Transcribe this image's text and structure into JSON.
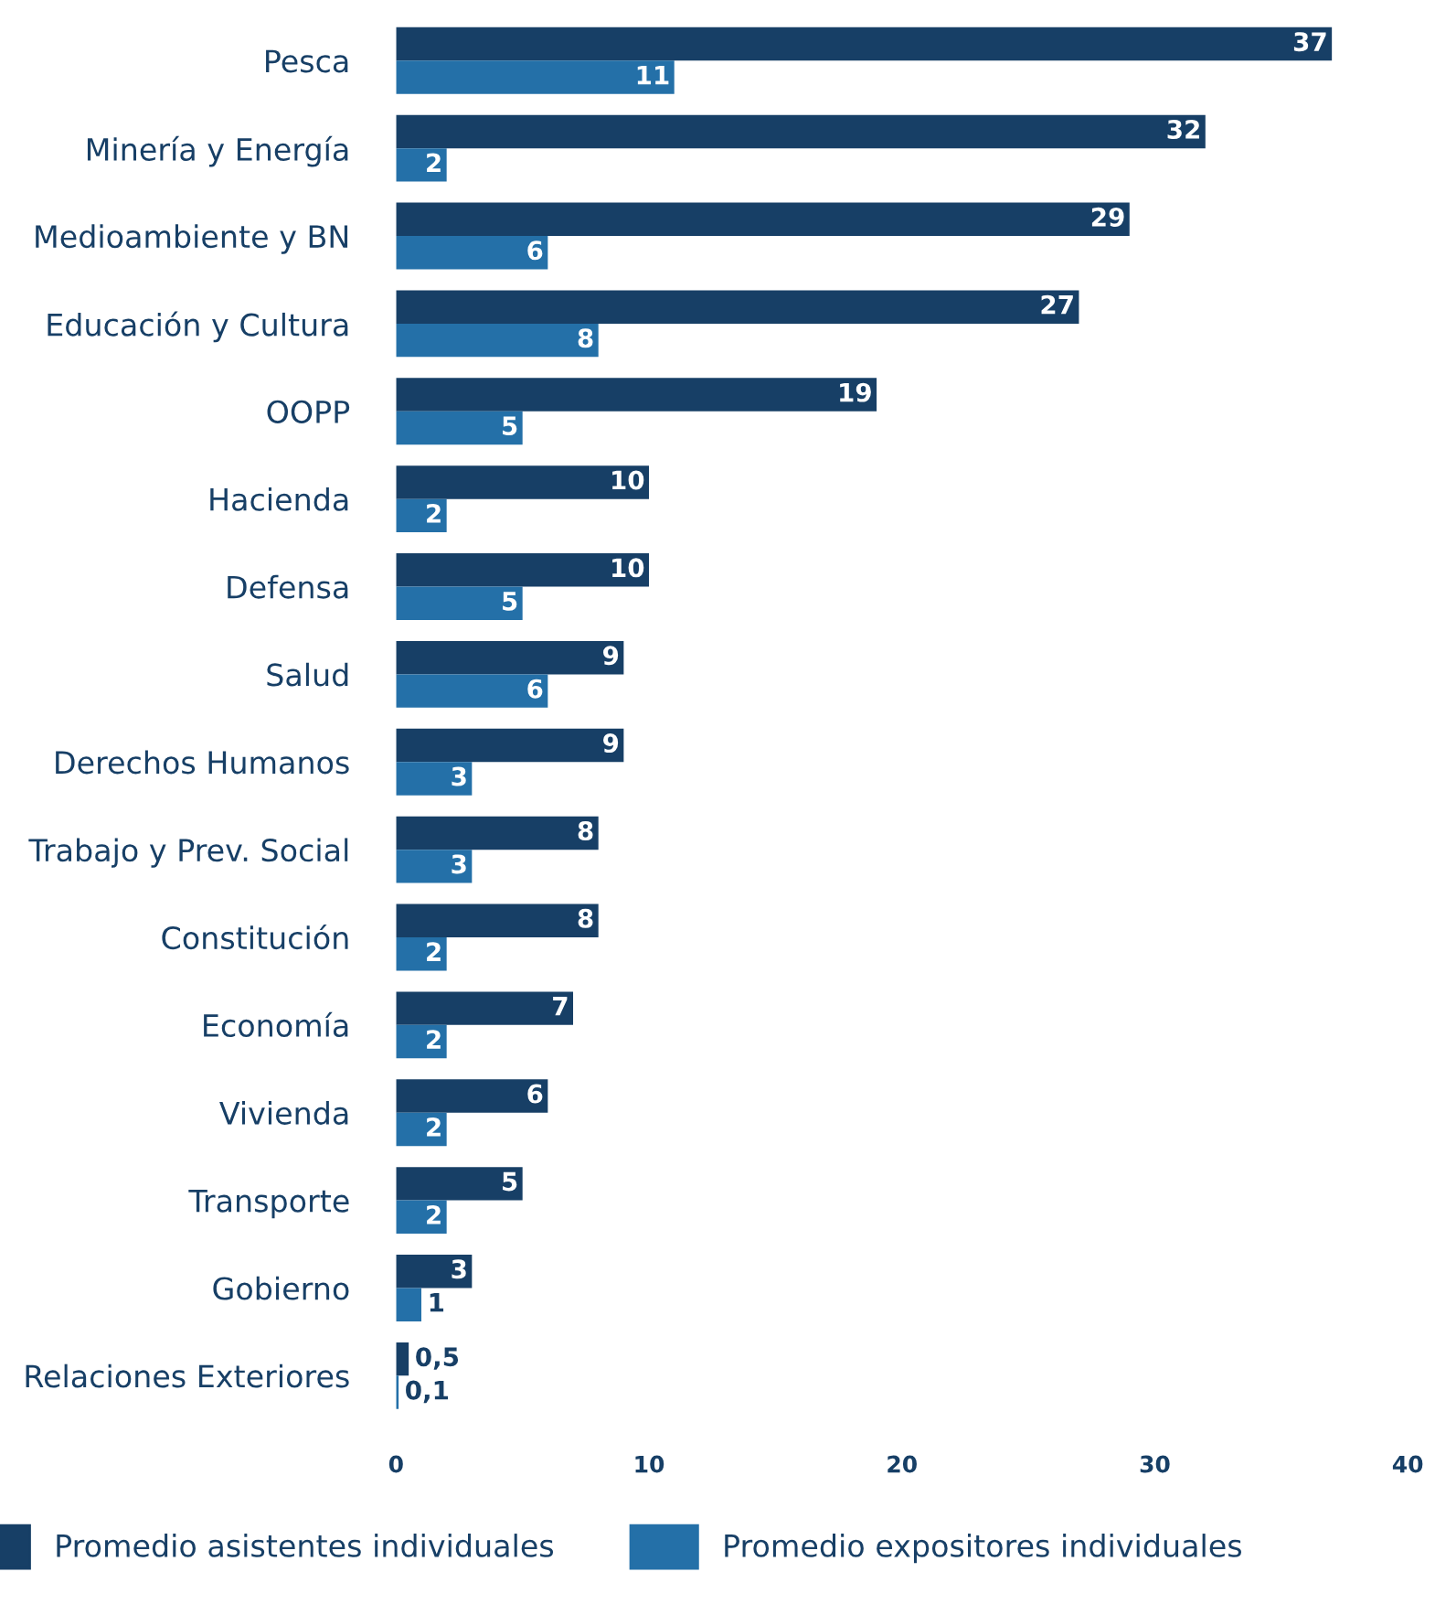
{
  "chart_data": {
    "type": "bar",
    "orientation": "horizontal",
    "categories": [
      "Pesca",
      "Minería y Energía",
      "Medioambiente y BN",
      "Educación y Cultura",
      "OOPP",
      "Hacienda",
      "Defensa",
      "Salud",
      "Derechos Humanos",
      "Trabajo y Prev. Social",
      "Constitución",
      "Economía",
      "Vivienda",
      "Transporte",
      "Gobierno",
      "Relaciones Exteriores"
    ],
    "series": [
      {
        "name": "Promedio asistentes individuales",
        "color": "#173f66",
        "values": [
          37,
          32,
          29,
          27,
          19,
          10,
          10,
          9,
          9,
          8,
          8,
          7,
          6,
          5,
          3,
          0.5
        ],
        "value_labels": [
          "37",
          "32",
          "29",
          "27",
          "19",
          "10",
          "10",
          "9",
          "9",
          "8",
          "8",
          "7",
          "6",
          "5",
          "3",
          "0,5"
        ]
      },
      {
        "name": "Promedio expositores individuales",
        "color": "#2470a8",
        "values": [
          11,
          2,
          6,
          8,
          5,
          2,
          5,
          6,
          3,
          3,
          2,
          2,
          2,
          2,
          1,
          0.1
        ],
        "value_labels": [
          "11",
          "2",
          "6",
          "8",
          "5",
          "2",
          "5",
          "6",
          "3",
          "3",
          "2",
          "2",
          "2",
          "2",
          "1",
          "0,1"
        ]
      }
    ],
    "xlim": [
      0,
      40
    ],
    "xticks": [
      0,
      10,
      20,
      30,
      40
    ],
    "grid": false,
    "legend": "bottom"
  }
}
